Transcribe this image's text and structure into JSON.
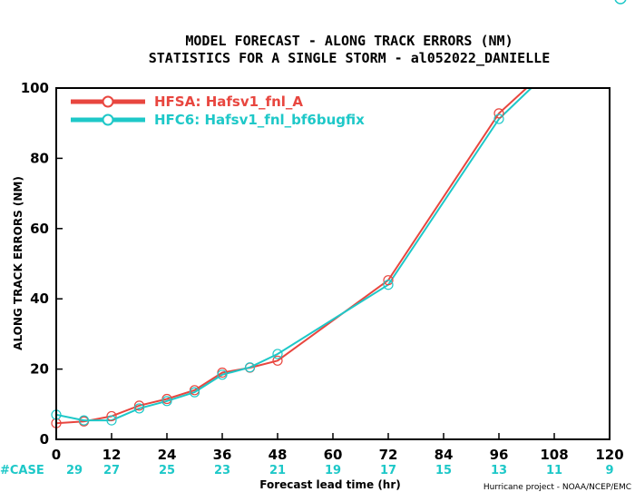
{
  "chart_data": {
    "type": "line",
    "title": "MODEL FORECAST - ALONG TRACK ERRORS (NM)",
    "subtitle": "STATISTICS FOR A SINGLE STORM - al052022_DANIELLE",
    "xlabel": "Forecast lead time (hr)",
    "ylabel": "ALONG TRACK ERRORS (NM)",
    "xlim": [
      0,
      120
    ],
    "ylim": [
      0,
      100
    ],
    "x_ticks": [
      "0",
      "12",
      "24",
      "36",
      "48",
      "60",
      "72",
      "84",
      "96",
      "108",
      "120"
    ],
    "y_ticks": [
      "0",
      "20",
      "40",
      "60",
      "80",
      "100"
    ],
    "grid": false,
    "legend_position": "top-left",
    "series": [
      {
        "name": "HFSA:  Hafsv1_fnl_A",
        "color": "#e8463f",
        "points": [
          [
            0,
            4.6
          ],
          [
            6,
            5.1
          ],
          [
            12,
            6.6
          ],
          [
            18,
            9.6
          ],
          [
            24,
            11.5
          ],
          [
            30,
            14.0
          ],
          [
            36,
            19.0
          ],
          [
            42,
            20.4
          ],
          [
            48,
            22.4
          ],
          [
            72,
            45.3
          ],
          [
            96,
            92.8
          ],
          [
            102,
            100
          ]
        ]
      },
      {
        "name": "HFC6:  Hafsv1_fnl_bf6bugfix",
        "color": "#1ec8c8",
        "points": [
          [
            0,
            7.0
          ],
          [
            6,
            5.4
          ],
          [
            12,
            5.4
          ],
          [
            18,
            8.8
          ],
          [
            24,
            10.9
          ],
          [
            30,
            13.4
          ],
          [
            36,
            18.4
          ],
          [
            42,
            20.5
          ],
          [
            48,
            24.3
          ],
          [
            72,
            44.0
          ],
          [
            96,
            91.2
          ],
          [
            103,
            100
          ]
        ]
      }
    ],
    "case_label": "#CASE",
    "case_counts": [
      {
        "x": 0,
        "label": "29"
      },
      {
        "x": 12,
        "label": "27"
      },
      {
        "x": 24,
        "label": "25"
      },
      {
        "x": 36,
        "label": "23"
      },
      {
        "x": 48,
        "label": "21"
      },
      {
        "x": 60,
        "label": "19"
      },
      {
        "x": 72,
        "label": "17"
      },
      {
        "x": 84,
        "label": "15"
      },
      {
        "x": 96,
        "label": "13"
      },
      {
        "x": 108,
        "label": "11"
      },
      {
        "x": 120,
        "label": "9"
      }
    ],
    "credit": "Hurricane project - NOAA/NCEP/EMC"
  }
}
